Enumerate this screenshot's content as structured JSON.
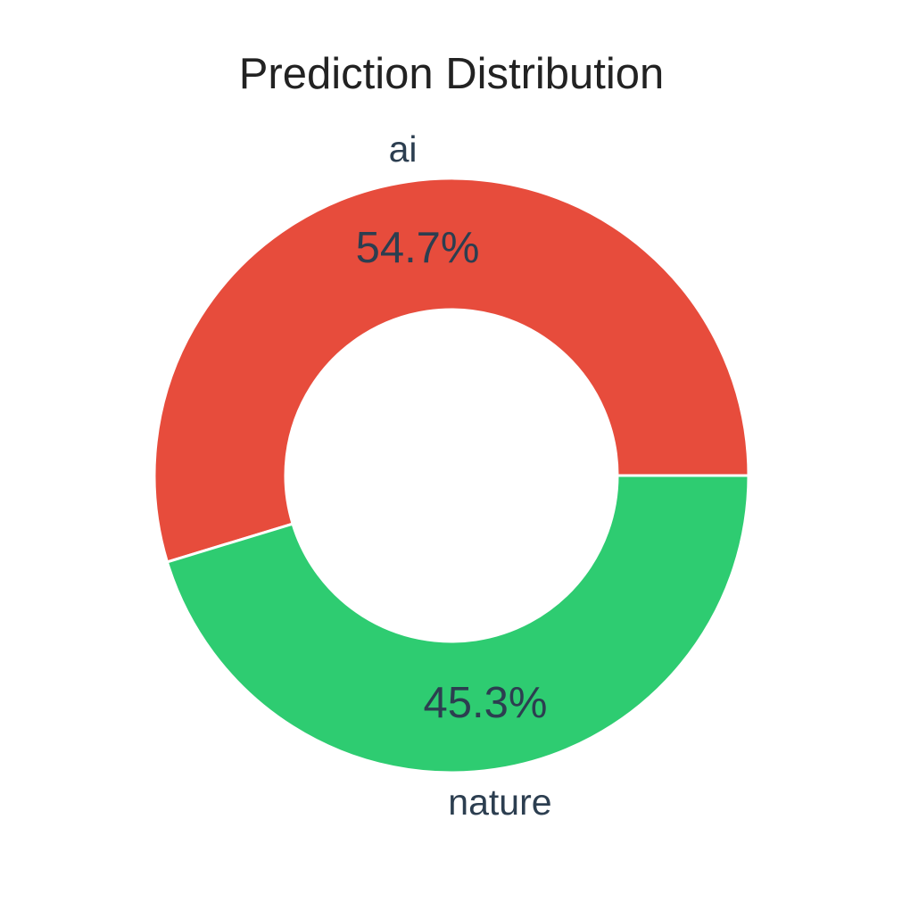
{
  "chart_data": {
    "type": "pie",
    "title": "Prediction Distribution",
    "labels": [
      "ai",
      "nature"
    ],
    "values": [
      54.7,
      45.3
    ],
    "percent_labels": [
      "54.7%",
      "45.3%"
    ],
    "colors": [
      "#e74c3c",
      "#2ecc71"
    ],
    "style": "donut",
    "legend": "none"
  }
}
